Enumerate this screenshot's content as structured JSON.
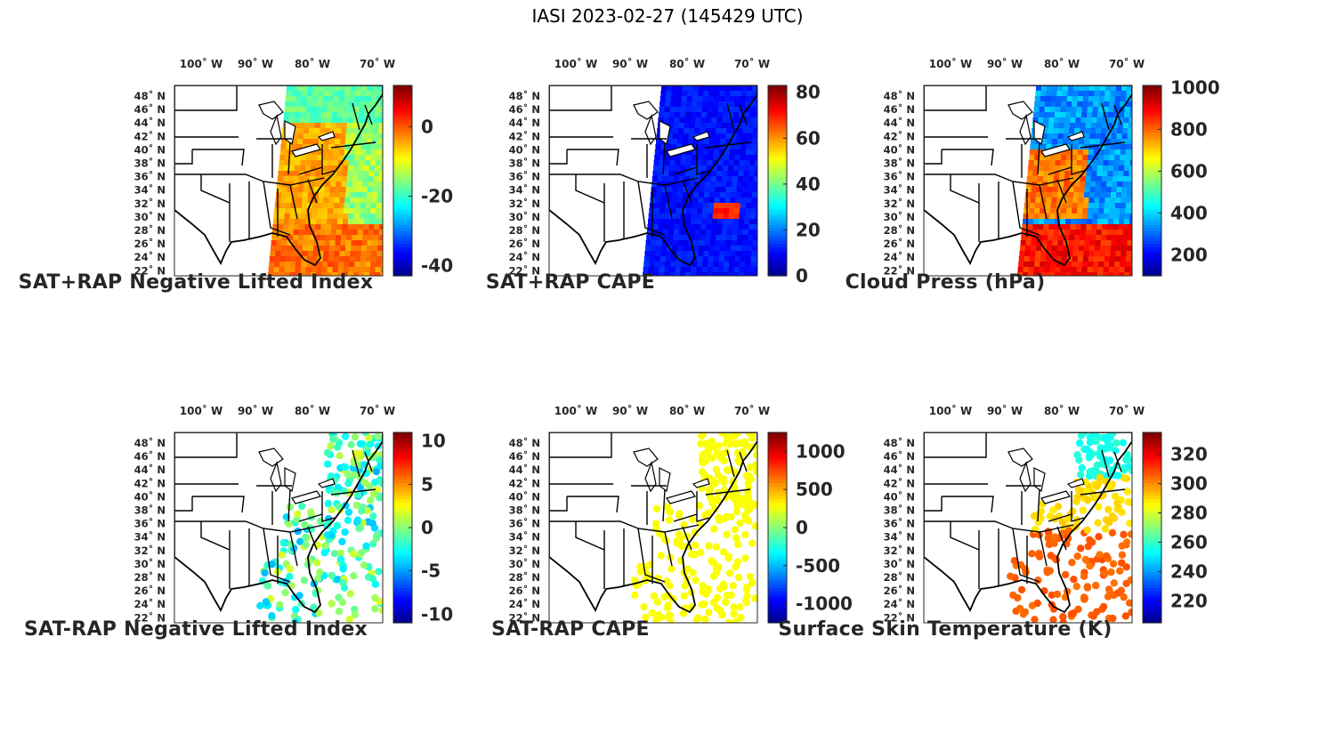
{
  "figure_title": "IASI 2023-02-27 (145429 UTC)",
  "colormap": "jet",
  "chart_data": [
    {
      "type": "heatmap",
      "title": "SAT+RAP Negative Lifted Index",
      "x_tick_labels": [
        "100˚ W",
        "90˚ W",
        "80˚ W",
        "70˚ W"
      ],
      "y_tick_labels": [
        "48˚ N",
        "46˚ N",
        "44˚ N",
        "42˚ N",
        "40˚ N",
        "38˚ N",
        "36˚ N",
        "34˚ N",
        "32˚ N",
        "30˚ N",
        "28˚ N",
        "26˚ N",
        "24˚ N",
        "22˚ N"
      ],
      "colorbar": {
        "range": [
          -43,
          12
        ],
        "ticks": [
          0,
          -20,
          -40
        ],
        "tick_labels": [
          "0",
          "-20",
          "-40"
        ]
      }
    },
    {
      "type": "heatmap",
      "title": "SAT+RAP CAPE",
      "x_tick_labels": [
        "100˚ W",
        "90˚ W",
        "80˚ W",
        "70˚ W"
      ],
      "y_tick_labels": [
        "48˚ N",
        "46˚ N",
        "44˚ N",
        "42˚ N",
        "40˚ N",
        "38˚ N",
        "36˚ N",
        "34˚ N",
        "32˚ N",
        "30˚ N",
        "28˚ N",
        "26˚ N",
        "24˚ N",
        "22˚ N"
      ],
      "colorbar": {
        "range": [
          0,
          83
        ],
        "ticks": [
          80,
          60,
          40,
          20,
          0
        ],
        "tick_labels": [
          "80",
          "60",
          "40",
          "20",
          "0"
        ]
      }
    },
    {
      "type": "heatmap",
      "title": "Cloud Press (hPa)",
      "x_tick_labels": [
        "100˚ W",
        "90˚ W",
        "80˚ W",
        "70˚ W"
      ],
      "y_tick_labels": [
        "48˚ N",
        "46˚ N",
        "44˚ N",
        "42˚ N",
        "40˚ N",
        "38˚ N",
        "36˚ N",
        "34˚ N",
        "32˚ N",
        "30˚ N",
        "28˚ N",
        "26˚ N",
        "24˚ N",
        "22˚ N"
      ],
      "colorbar": {
        "range": [
          100,
          1010
        ],
        "ticks": [
          1000,
          800,
          600,
          400,
          200
        ],
        "tick_labels": [
          "1000",
          "800",
          "600",
          "400",
          "200"
        ]
      }
    },
    {
      "type": "heatmap",
      "title": "SAT-RAP Negative Lifted Index",
      "x_tick_labels": [
        "100˚ W",
        "90˚ W",
        "80˚ W",
        "70˚ W"
      ],
      "y_tick_labels": [
        "48˚ N",
        "46˚ N",
        "44˚ N",
        "42˚ N",
        "40˚ N",
        "38˚ N",
        "36˚ N",
        "34˚ N",
        "32˚ N",
        "30˚ N",
        "28˚ N",
        "26˚ N",
        "24˚ N",
        "22˚ N"
      ],
      "colorbar": {
        "range": [
          -11,
          11
        ],
        "ticks": [
          10,
          5,
          0,
          -5,
          -10
        ],
        "tick_labels": [
          "10",
          "5",
          "0",
          "-5",
          "-10"
        ]
      }
    },
    {
      "type": "heatmap",
      "title": "SAT-RAP CAPE",
      "x_tick_labels": [
        "100˚ W",
        "90˚ W",
        "80˚ W",
        "70˚ W"
      ],
      "y_tick_labels": [
        "48˚ N",
        "46˚ N",
        "44˚ N",
        "42˚ N",
        "40˚ N",
        "38˚ N",
        "36˚ N",
        "34˚ N",
        "32˚ N",
        "30˚ N",
        "28˚ N",
        "26˚ N",
        "24˚ N",
        "22˚ N"
      ],
      "colorbar": {
        "range": [
          -1250,
          1250
        ],
        "ticks": [
          1000,
          500,
          0,
          -500,
          -1000
        ],
        "tick_labels": [
          "1000",
          "500",
          "0",
          "-500",
          "-1000"
        ]
      }
    },
    {
      "type": "heatmap",
      "title": "Surface Skin Temperature (K)",
      "x_tick_labels": [
        "100˚ W",
        "90˚ W",
        "80˚ W",
        "70˚ W"
      ],
      "y_tick_labels": [
        "48˚ N",
        "46˚ N",
        "44˚ N",
        "42˚ N",
        "40˚ N",
        "38˚ N",
        "36˚ N",
        "34˚ N",
        "32˚ N",
        "30˚ N",
        "28˚ N",
        "26˚ N",
        "24˚ N",
        "22˚ N"
      ],
      "colorbar": {
        "range": [
          205,
          335
        ],
        "ticks": [
          320,
          300,
          280,
          260,
          240,
          220
        ],
        "tick_labels": [
          "320",
          "300",
          "280",
          "260",
          "240",
          "220"
        ]
      }
    }
  ]
}
